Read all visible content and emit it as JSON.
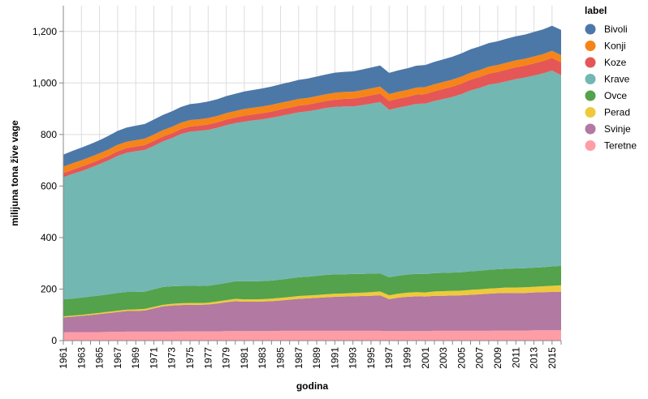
{
  "chart_data": {
    "type": "area",
    "stacked": true,
    "xlabel": "godina",
    "ylabel": "milijuna tona žive vage",
    "ylim": [
      0,
      1300
    ],
    "yticks": [
      0,
      200,
      400,
      600,
      800,
      1000,
      1200
    ],
    "ytick_labels": [
      "0",
      "200",
      "400",
      "600",
      "800",
      "1,000",
      "1,200"
    ],
    "xlim": [
      1961,
      2016
    ],
    "xticks": [
      1961,
      1963,
      1965,
      1967,
      1969,
      1971,
      1973,
      1975,
      1977,
      1979,
      1981,
      1983,
      1985,
      1987,
      1989,
      1991,
      1993,
      1995,
      1997,
      1999,
      2001,
      2003,
      2005,
      2007,
      2009,
      2011,
      2013,
      2015
    ],
    "grid": true,
    "legend_title": "label",
    "legend_position": "right",
    "x": [
      1961,
      1962,
      1963,
      1964,
      1965,
      1966,
      1967,
      1968,
      1969,
      1970,
      1971,
      1972,
      1973,
      1974,
      1975,
      1976,
      1977,
      1978,
      1979,
      1980,
      1981,
      1982,
      1983,
      1984,
      1985,
      1986,
      1987,
      1988,
      1989,
      1990,
      1991,
      1992,
      1993,
      1994,
      1995,
      1996,
      1997,
      1998,
      1999,
      2000,
      2001,
      2002,
      2003,
      2004,
      2005,
      2006,
      2007,
      2008,
      2009,
      2010,
      2011,
      2012,
      2013,
      2014,
      2015,
      2016
    ],
    "series": [
      {
        "name": "Teretne",
        "color": "#ff9da6",
        "values": [
          32,
          33,
          33,
          33,
          33,
          34,
          34,
          35,
          35,
          35,
          35,
          35,
          35,
          36,
          36,
          36,
          36,
          36,
          37,
          37,
          37,
          37,
          37,
          37,
          38,
          38,
          38,
          38,
          38,
          38,
          38,
          38,
          38,
          38,
          38,
          38,
          37,
          37,
          37,
          37,
          37,
          38,
          38,
          38,
          38,
          38,
          38,
          38,
          39,
          39,
          39,
          39,
          40,
          40,
          40,
          40
        ]
      },
      {
        "name": "Svinje",
        "color": "#b279a2",
        "values": [
          58,
          60,
          63,
          66,
          70,
          73,
          77,
          80,
          80,
          82,
          90,
          98,
          101,
          102,
          103,
          103,
          104,
          108,
          112,
          116,
          114,
          114,
          115,
          116,
          118,
          121,
          124,
          126,
          128,
          130,
          132,
          133,
          134,
          135,
          136,
          138,
          124,
          130,
          133,
          135,
          134,
          136,
          136,
          137,
          138,
          140,
          142,
          144,
          145,
          146,
          146,
          146,
          147,
          148,
          149,
          150
        ]
      },
      {
        "name": "Perad",
        "color": "#eeca3b",
        "values": [
          4,
          4,
          4,
          5,
          5,
          5,
          5,
          5,
          6,
          6,
          6,
          6,
          7,
          7,
          7,
          7,
          7,
          8,
          8,
          9,
          9,
          9,
          9,
          10,
          10,
          10,
          11,
          11,
          11,
          12,
          12,
          12,
          13,
          13,
          14,
          15,
          15,
          15,
          16,
          16,
          16,
          17,
          18,
          18,
          18,
          19,
          19,
          20,
          20,
          21,
          21,
          22,
          22,
          23,
          24,
          25
        ]
      },
      {
        "name": "Ovce",
        "color": "#54a24b",
        "values": [
          66,
          66,
          67,
          67,
          67,
          68,
          69,
          69,
          68,
          67,
          68,
          69,
          68,
          67,
          67,
          66,
          66,
          66,
          67,
          68,
          70,
          70,
          70,
          70,
          71,
          72,
          73,
          73,
          74,
          75,
          75,
          74,
          74,
          73,
          72,
          70,
          70,
          70,
          70,
          71,
          71,
          71,
          71,
          71,
          71,
          72,
          72,
          73,
          73,
          73,
          74,
          74,
          74,
          74,
          75,
          75
        ]
      },
      {
        "name": "Krave",
        "color": "#72b7b2",
        "values": [
          474,
          484,
          491,
          500,
          510,
          520,
          532,
          540,
          546,
          550,
          557,
          565,
          575,
          590,
          598,
          602,
          605,
          608,
          612,
          614,
          620,
          625,
          628,
          632,
          635,
          638,
          640,
          642,
          645,
          648,
          650,
          652,
          650,
          655,
          660,
          665,
          650,
          652,
          655,
          660,
          662,
          668,
          675,
          682,
          692,
          702,
          710,
          718,
          722,
          728,
          735,
          740,
          746,
          752,
          760,
          740
        ]
      },
      {
        "name": "Koze",
        "color": "#e45756",
        "values": [
          16,
          16,
          17,
          17,
          17,
          17,
          18,
          18,
          18,
          19,
          19,
          19,
          19,
          19,
          20,
          20,
          21,
          21,
          22,
          22,
          23,
          23,
          24,
          24,
          25,
          25,
          26,
          26,
          27,
          27,
          28,
          29,
          30,
          31,
          32,
          33,
          34,
          35,
          35,
          36,
          37,
          38,
          39,
          40,
          41,
          42,
          42,
          43,
          44,
          45,
          46,
          46,
          47,
          48,
          49,
          50
        ]
      },
      {
        "name": "Konji",
        "color": "#f58518",
        "values": [
          25,
          25,
          25,
          25,
          25,
          25,
          25,
          25,
          25,
          25,
          25,
          25,
          25,
          25,
          25,
          25,
          25,
          25,
          25,
          25,
          26,
          26,
          26,
          26,
          26,
          26,
          26,
          26,
          26,
          26,
          27,
          27,
          27,
          27,
          27,
          27,
          27,
          27,
          27,
          27,
          27,
          27,
          27,
          27,
          27,
          27,
          27,
          27,
          27,
          27,
          27,
          27,
          27,
          27,
          28,
          28
        ]
      },
      {
        "name": "Bivoli",
        "color": "#4c78a8",
        "values": [
          47,
          48,
          49,
          50,
          51,
          53,
          54,
          55,
          56,
          57,
          58,
          59,
          60,
          61,
          62,
          63,
          64,
          65,
          66,
          67,
          68,
          69,
          70,
          71,
          72,
          73,
          74,
          75,
          76,
          77,
          78,
          78,
          79,
          80,
          81,
          82,
          82,
          83,
          84,
          85,
          86,
          87,
          88,
          89,
          90,
          91,
          92,
          92,
          92,
          93,
          93,
          94,
          95,
          96,
          97,
          98
        ]
      }
    ]
  }
}
